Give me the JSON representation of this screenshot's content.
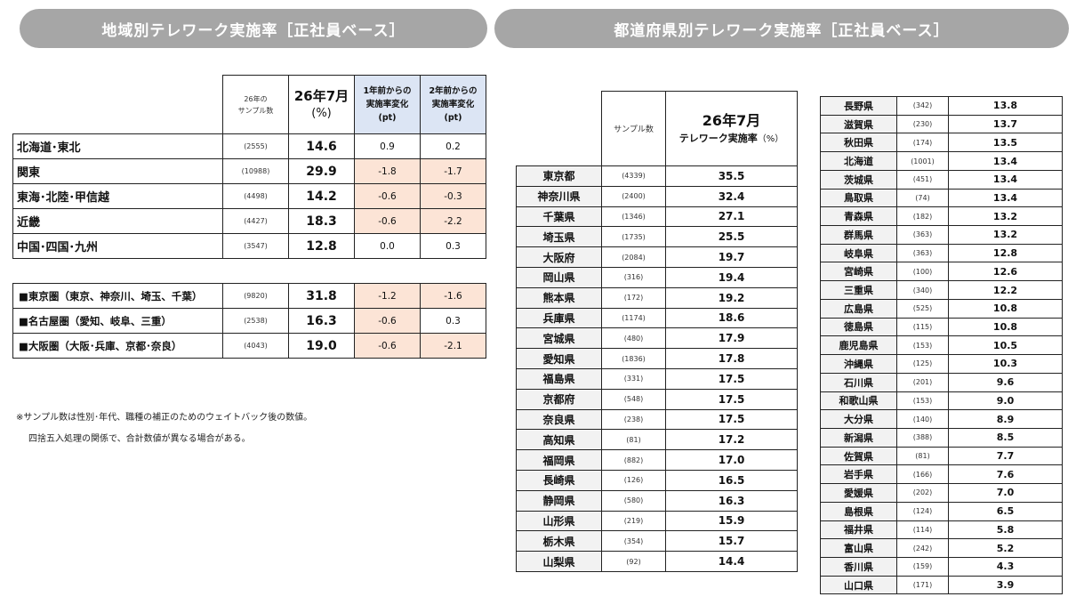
{
  "left_title": "地域別テレワーク実施率［正社員ベース］",
  "right_title": "都道府県別テレワーク実施率［正社員ベース］",
  "region_table": {
    "headers": {
      "sample_line1": "26年の",
      "sample_line2": "サンプル数",
      "rate_line1": "26年7月",
      "rate_line2": "(%)",
      "change1_line1": "1年前からの",
      "change1_line2": "実施率変化",
      "change1_line3": "(pt)",
      "change2_line1": "2年前からの",
      "change2_line2": "実施率変化",
      "change2_line3": "(pt)"
    },
    "regions": [
      {
        "name": "北海道･東北",
        "sample": "(2555)",
        "rate": "14.6",
        "change1": "0.9",
        "change2": "0.2"
      },
      {
        "name": "関東",
        "sample": "(10988)",
        "rate": "29.9",
        "change1": "-1.8",
        "change2": "-1.7"
      },
      {
        "name": "東海･北陸･甲信越",
        "sample": "(4498)",
        "rate": "14.2",
        "change1": "-0.6",
        "change2": "-0.3"
      },
      {
        "name": "近畿",
        "sample": "(4427)",
        "rate": "18.3",
        "change1": "-0.6",
        "change2": "-2.2"
      },
      {
        "name": "中国･四国･九州",
        "sample": "(3547)",
        "rate": "12.8",
        "change1": "0.0",
        "change2": "0.3"
      }
    ],
    "metros": [
      {
        "name": "■東京圏（東京、神奈川、埼玉、千葉）",
        "sample": "(9820)",
        "rate": "31.8",
        "change1": "-1.2",
        "change2": "-1.6"
      },
      {
        "name": "■名古屋圏（愛知、岐阜、三重）",
        "sample": "(2538)",
        "rate": "16.3",
        "change1": "-0.6",
        "change2": "0.3"
      },
      {
        "name": "■大阪圏（大阪･兵庫、京都･奈良）",
        "sample": "(4043)",
        "rate": "19.0",
        "change1": "-0.6",
        "change2": "-2.1"
      }
    ]
  },
  "notes": {
    "line1": "※サンプル数は性別･年代、職種の補正のためのウェイトバック後の数値。",
    "line2": "四捨五入処理の関係で、合計数値が異なる場合がある。"
  },
  "pref_header": {
    "sample": "サンプル数",
    "rate_line1": "26年7月",
    "rate_line2": "テレワーク実施率",
    "rate_unit": "（%）"
  },
  "prefectures_a": [
    {
      "name": "東京都",
      "sample": "(4339)",
      "rate": "35.5"
    },
    {
      "name": "神奈川県",
      "sample": "(2400)",
      "rate": "32.4"
    },
    {
      "name": "千葉県",
      "sample": "(1346)",
      "rate": "27.1"
    },
    {
      "name": "埼玉県",
      "sample": "(1735)",
      "rate": "25.5"
    },
    {
      "name": "大阪府",
      "sample": "(2084)",
      "rate": "19.7"
    },
    {
      "name": "岡山県",
      "sample": "(316)",
      "rate": "19.4"
    },
    {
      "name": "熊本県",
      "sample": "(172)",
      "rate": "19.2"
    },
    {
      "name": "兵庫県",
      "sample": "(1174)",
      "rate": "18.6"
    },
    {
      "name": "宮城県",
      "sample": "(480)",
      "rate": "17.9"
    },
    {
      "name": "愛知県",
      "sample": "(1836)",
      "rate": "17.8"
    },
    {
      "name": "福島県",
      "sample": "(331)",
      "rate": "17.5"
    },
    {
      "name": "京都府",
      "sample": "(548)",
      "rate": "17.5"
    },
    {
      "name": "奈良県",
      "sample": "(238)",
      "rate": "17.5"
    },
    {
      "name": "高知県",
      "sample": "(81)",
      "rate": "17.2"
    },
    {
      "name": "福岡県",
      "sample": "(882)",
      "rate": "17.0"
    },
    {
      "name": "長崎県",
      "sample": "(126)",
      "rate": "16.5"
    },
    {
      "name": "静岡県",
      "sample": "(580)",
      "rate": "16.3"
    },
    {
      "name": "山形県",
      "sample": "(219)",
      "rate": "15.9"
    },
    {
      "name": "栃木県",
      "sample": "(354)",
      "rate": "15.7"
    },
    {
      "name": "山梨県",
      "sample": "(92)",
      "rate": "14.4"
    }
  ],
  "prefectures_b": [
    {
      "name": "長野県",
      "sample": "(342)",
      "rate": "13.8"
    },
    {
      "name": "滋賀県",
      "sample": "(230)",
      "rate": "13.7"
    },
    {
      "name": "秋田県",
      "sample": "(174)",
      "rate": "13.5"
    },
    {
      "name": "北海道",
      "sample": "(1001)",
      "rate": "13.4"
    },
    {
      "name": "茨城県",
      "sample": "(451)",
      "rate": "13.4"
    },
    {
      "name": "鳥取県",
      "sample": "(74)",
      "rate": "13.4"
    },
    {
      "name": "青森県",
      "sample": "(182)",
      "rate": "13.2"
    },
    {
      "name": "群馬県",
      "sample": "(363)",
      "rate": "13.2"
    },
    {
      "name": "岐阜県",
      "sample": "(363)",
      "rate": "12.8"
    },
    {
      "name": "宮崎県",
      "sample": "(100)",
      "rate": "12.6"
    },
    {
      "name": "三重県",
      "sample": "(340)",
      "rate": "12.2"
    },
    {
      "name": "広島県",
      "sample": "(525)",
      "rate": "10.8"
    },
    {
      "name": "徳島県",
      "sample": "(115)",
      "rate": "10.8"
    },
    {
      "name": "鹿児島県",
      "sample": "(153)",
      "rate": "10.5"
    },
    {
      "name": "沖縄県",
      "sample": "(125)",
      "rate": "10.3"
    },
    {
      "name": "石川県",
      "sample": "(201)",
      "rate": "9.6"
    },
    {
      "name": "和歌山県",
      "sample": "(153)",
      "rate": "9.0"
    },
    {
      "name": "大分県",
      "sample": "(140)",
      "rate": "8.9"
    },
    {
      "name": "新潟県",
      "sample": "(388)",
      "rate": "8.5"
    },
    {
      "name": "佐賀県",
      "sample": "(81)",
      "rate": "7.7"
    },
    {
      "name": "岩手県",
      "sample": "(166)",
      "rate": "7.6"
    },
    {
      "name": "愛媛県",
      "sample": "(202)",
      "rate": "7.0"
    },
    {
      "name": "島根県",
      "sample": "(124)",
      "rate": "6.5"
    },
    {
      "name": "福井県",
      "sample": "(114)",
      "rate": "5.8"
    },
    {
      "name": "富山県",
      "sample": "(242)",
      "rate": "5.2"
    },
    {
      "name": "香川県",
      "sample": "(159)",
      "rate": "4.3"
    },
    {
      "name": "山口県",
      "sample": "(171)",
      "rate": "3.9"
    }
  ]
}
